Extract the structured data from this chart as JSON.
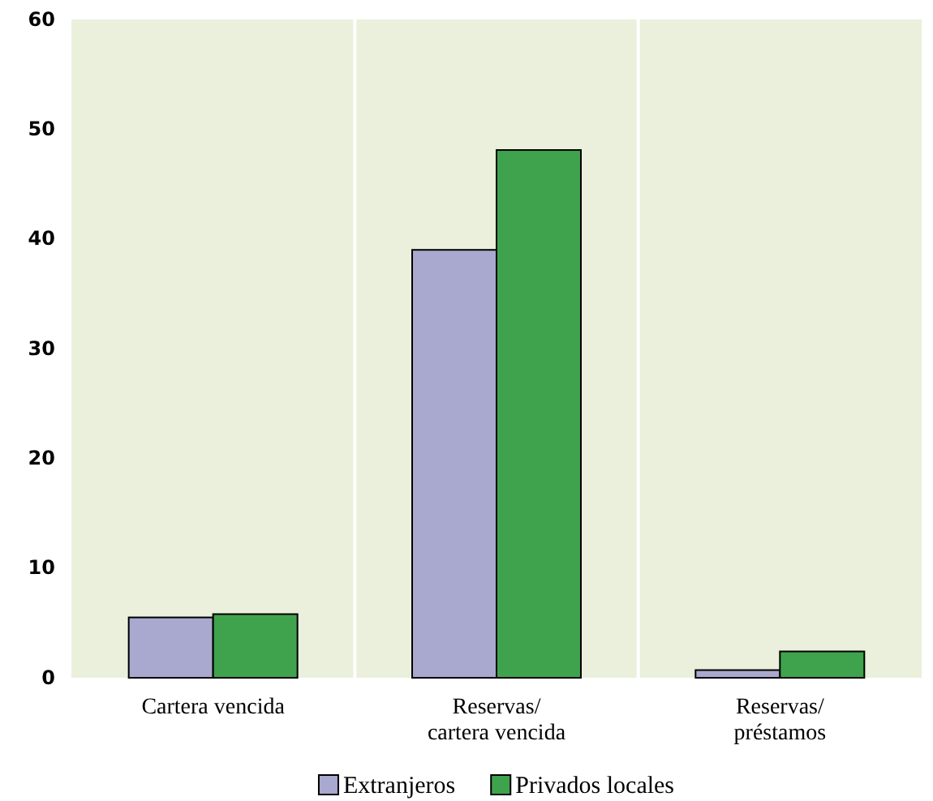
{
  "chart_data": {
    "type": "bar",
    "categories": [
      "Cartera vencida",
      "Reservas/\ncartera vencida",
      "Reservas/\npréstamos"
    ],
    "series": [
      {
        "name": "Extranjeros",
        "color": "#a9a8cf",
        "values": [
          5.5,
          39,
          0.7
        ]
      },
      {
        "name": "Privados locales",
        "color": "#3fa34d",
        "values": [
          5.8,
          48.1,
          2.4
        ]
      }
    ],
    "ylim": [
      0,
      60
    ],
    "yticks": [
      0,
      10,
      20,
      30,
      40,
      50,
      60
    ],
    "grid": "x",
    "legend": "bottom"
  }
}
